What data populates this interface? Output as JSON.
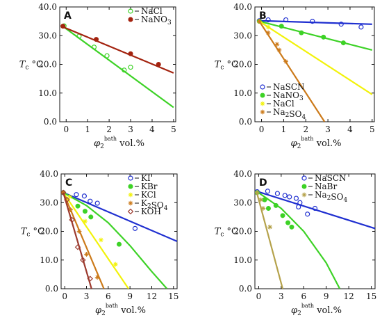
{
  "colors": {
    "blue": "#1f2fd0",
    "green": "#3dd226",
    "yellow": "#f2f20a",
    "orange": "#cc7a1a",
    "darkred": "#a3230f",
    "olive": "#b5a24b",
    "brown": "#9c3a2e"
  },
  "chart_data": [
    {
      "panel": "A",
      "type": "scatter",
      "xlim": [
        -0.3,
        5.1
      ],
      "ylim": [
        0,
        40
      ],
      "xticks": [
        "0",
        "1",
        "2",
        "3",
        "4",
        "5"
      ],
      "yticks": [
        "0.0",
        "10.0",
        "20.0",
        "30.0",
        "40.0"
      ],
      "xlabel": "φ2bath vol.%",
      "ylabel": "Tc °C",
      "legend_position": "top-right",
      "series": [
        {
          "name": "NaCl",
          "color": "#3dd226",
          "marker": "open-circle",
          "fit": [
            [
              -0.2,
              33.5
            ],
            [
              5.0,
              5.0
            ]
          ],
          "points": [
            [
              -0.1,
              33.4
            ],
            [
              0.6,
              29.8
            ],
            [
              1.3,
              26.0
            ],
            [
              1.9,
              23.0
            ],
            [
              2.7,
              18.0
            ],
            [
              3.0,
              19.0
            ]
          ]
        },
        {
          "name": "NaNO3",
          "color": "#a3230f",
          "marker": "filled-circle",
          "fit": [
            [
              -0.2,
              33.2
            ],
            [
              5.0,
              17.0
            ]
          ],
          "points": [
            [
              -0.15,
              33.3
            ],
            [
              1.4,
              28.7
            ],
            [
              3.0,
              23.7
            ],
            [
              4.3,
              20.0
            ]
          ]
        }
      ]
    },
    {
      "panel": "B",
      "type": "scatter",
      "xlim": [
        -0.3,
        5.1
      ],
      "ylim": [
        0,
        40
      ],
      "xticks": [
        "0",
        "1",
        "2",
        "3",
        "4",
        "5"
      ],
      "yticks": [
        "0.0",
        "10.0",
        "20.0",
        "30.0",
        "40.0"
      ],
      "xlabel": "φ2bath vol.%",
      "ylabel": "Tc °C",
      "legend_position": "bottom-left",
      "series": [
        {
          "name": "NaSCN",
          "color": "#1f2fd0",
          "marker": "open-circle",
          "fit": [
            [
              -0.1,
              35.2
            ],
            [
              5.0,
              34.0
            ]
          ],
          "points": [
            [
              -0.1,
              35.2
            ],
            [
              0.3,
              35.5
            ],
            [
              1.1,
              35.5
            ],
            [
              2.3,
              35.0
            ],
            [
              3.6,
              34.0
            ],
            [
              4.5,
              33.0
            ]
          ]
        },
        {
          "name": "NaNO3",
          "color": "#3dd226",
          "marker": "filled-circle",
          "fit": [
            [
              -0.1,
              35.0
            ],
            [
              5.0,
              25.0
            ]
          ],
          "points": [
            [
              -0.1,
              35.0
            ],
            [
              0.9,
              33.3
            ],
            [
              1.8,
              31.0
            ],
            [
              2.8,
              29.5
            ],
            [
              3.7,
              27.5
            ]
          ]
        },
        {
          "name": "NaCl",
          "color": "#f2f20a",
          "marker": "star",
          "fit": [
            [
              -0.1,
              35.0
            ],
            [
              5.0,
              9.5
            ]
          ],
          "points": [
            [
              -0.1,
              35.0
            ],
            [
              0.3,
              33.0
            ]
          ]
        },
        {
          "name": "Na2SO4",
          "color": "#cc7a1a",
          "marker": "star",
          "fit": [
            [
              -0.1,
              35.0
            ],
            [
              2.85,
              0.0
            ]
          ],
          "points": [
            [
              -0.1,
              35.0
            ],
            [
              0.3,
              31.0
            ],
            [
              0.7,
              27.0
            ],
            [
              0.8,
              25.0
            ],
            [
              1.1,
              21.0
            ]
          ]
        }
      ]
    },
    {
      "panel": "C",
      "type": "scatter",
      "xlim": [
        -0.5,
        15.5
      ],
      "ylim": [
        0,
        40
      ],
      "xticks": [
        "0",
        "3",
        "6",
        "9",
        "12",
        "15"
      ],
      "yticks": [
        "0.0",
        "10.0",
        "20.0",
        "30.0",
        "40.0"
      ],
      "xlabel": "φ2bath vol.%",
      "ylabel": "Tc °C",
      "legend_position": "top-right",
      "series": [
        {
          "name": "KI",
          "color": "#1f2fd0",
          "marker": "open-circle",
          "fit": [
            [
              -0.2,
              33.5
            ],
            [
              15.5,
              16.5
            ]
          ],
          "points": [
            [
              -0.2,
              33.5
            ],
            [
              1.6,
              32.8
            ],
            [
              2.7,
              32.3
            ],
            [
              3.5,
              30.5
            ],
            [
              4.5,
              29.8
            ],
            [
              9.7,
              21.0
            ]
          ]
        },
        {
          "name": "KBr",
          "color": "#3dd226",
          "marker": "filled-circle",
          "fit": [
            [
              -0.2,
              33.5
            ],
            [
              3.0,
              29.0
            ],
            [
              6.0,
              23.0
            ],
            [
              9.0,
              15.0
            ],
            [
              12.0,
              6.0
            ],
            [
              14.1,
              0.0
            ]
          ],
          "points": [
            [
              -0.2,
              33.5
            ],
            [
              1.8,
              28.8
            ],
            [
              2.8,
              27.0
            ],
            [
              3.6,
              25.0
            ],
            [
              7.5,
              15.5
            ]
          ]
        },
        {
          "name": "KCl",
          "color": "#f2f20a",
          "marker": "star",
          "fit": [
            [
              -0.2,
              33.5
            ],
            [
              8.8,
              0.0
            ]
          ],
          "points": [
            [
              -0.2,
              33.5
            ],
            [
              0.7,
              32.0
            ],
            [
              2.8,
              23.5
            ],
            [
              5.0,
              17.0
            ],
            [
              7.0,
              8.5
            ]
          ]
        },
        {
          "name": "K2SO4",
          "color": "#cc7a1a",
          "marker": "star",
          "fit": [
            [
              -0.2,
              33.5
            ],
            [
              5.4,
              0.0
            ]
          ],
          "points": [
            [
              -0.2,
              33.5
            ],
            [
              0.8,
              27.5
            ],
            [
              2.0,
              20.0
            ],
            [
              3.0,
              12.0
            ],
            [
              4.5,
              4.0
            ]
          ]
        },
        {
          "name": "KOH",
          "color": "#9c3a2e",
          "marker": "open-diamond",
          "fit": [
            [
              -0.2,
              33.5
            ],
            [
              3.7,
              0.0
            ]
          ],
          "points": [
            [
              -0.2,
              33.5
            ],
            [
              0.3,
              31.0
            ],
            [
              1.0,
              24.0
            ],
            [
              1.8,
              14.5
            ],
            [
              2.5,
              10.0
            ],
            [
              3.5,
              3.5
            ]
          ]
        }
      ]
    },
    {
      "panel": "D",
      "type": "scatter",
      "xlim": [
        -0.5,
        15.5
      ],
      "ylim": [
        0,
        40
      ],
      "xticks": [
        "0",
        "3",
        "6",
        "9",
        "12",
        "15"
      ],
      "yticks": [
        "0.0",
        "10.0",
        "20.0",
        "30.0",
        "40.0"
      ],
      "xlabel": "φ2bath vol.%",
      "ylabel": "Tc °C",
      "legend_position": "top-right",
      "series": [
        {
          "name": "NaSCN",
          "color": "#1f2fd0",
          "marker": "open-circle",
          "fit": [
            [
              -0.3,
              34.0
            ],
            [
              15.5,
              21.0
            ]
          ],
          "points": [
            [
              -0.2,
              33.8
            ],
            [
              1.2,
              34.0
            ],
            [
              2.5,
              33.2
            ],
            [
              3.5,
              32.5
            ],
            [
              4.1,
              32.0
            ],
            [
              5.0,
              31.5
            ],
            [
              5.5,
              30.0
            ],
            [
              5.3,
              28.5
            ],
            [
              6.5,
              26.0
            ],
            [
              7.5,
              28.0
            ]
          ]
        },
        {
          "name": "NaBr",
          "color": "#3dd226",
          "marker": "filled-circle",
          "fit": [
            [
              -0.3,
              34.0
            ],
            [
              3.0,
              28.0
            ],
            [
              6.0,
              20.0
            ],
            [
              9.0,
              9.0
            ],
            [
              10.8,
              0.0
            ]
          ],
          "points": [
            [
              -0.2,
              33.5
            ],
            [
              0.8,
              31.0
            ],
            [
              1.3,
              28.0
            ],
            [
              2.3,
              29.0
            ],
            [
              3.2,
              25.5
            ],
            [
              3.9,
              23.0
            ],
            [
              4.4,
              21.5
            ]
          ]
        },
        {
          "name": "Na2SO4",
          "color": "#b5a24b",
          "marker": "star",
          "fit": [
            [
              -0.3,
              34.0
            ],
            [
              3.2,
              0.0
            ]
          ],
          "points": [
            [
              -0.2,
              33.5
            ],
            [
              0.3,
              31.0
            ],
            [
              0.6,
              28.0
            ],
            [
              1.5,
              21.5
            ]
          ]
        }
      ]
    }
  ]
}
